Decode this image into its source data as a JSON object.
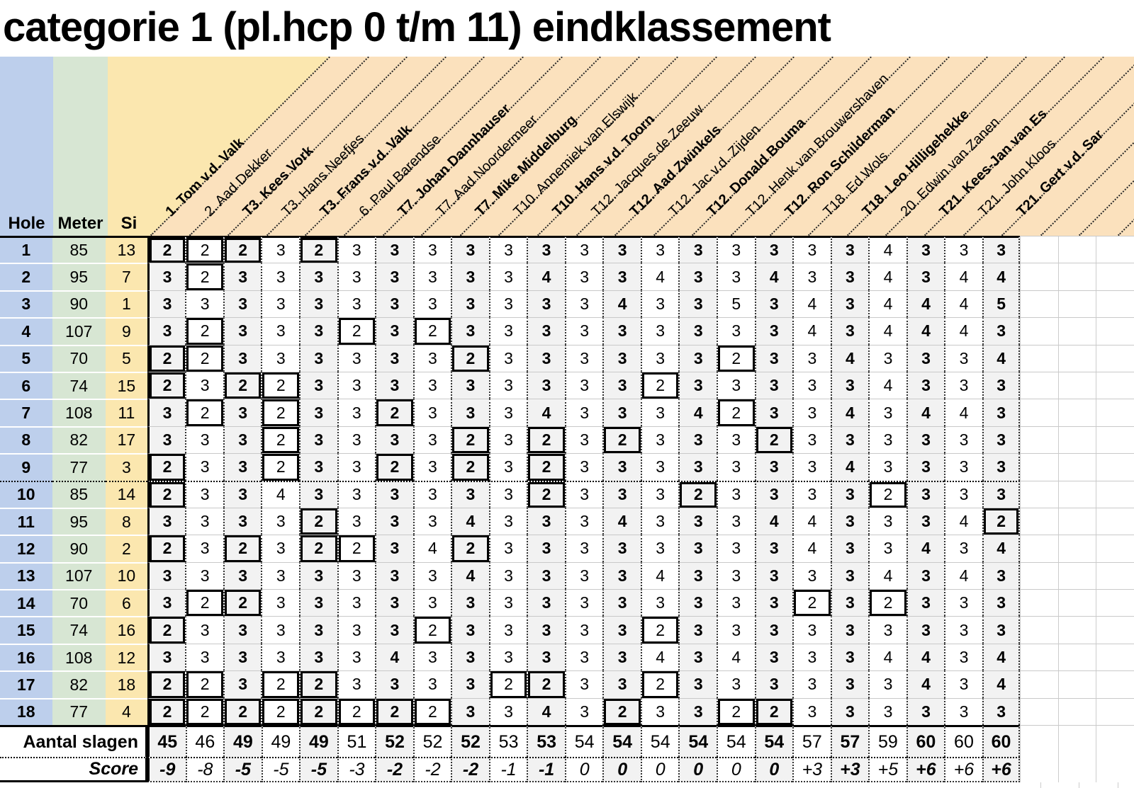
{
  "title": "categorie 1 (pl.hcp 0 t/m 11) eindklassement",
  "columns": {
    "hole": "Hole",
    "meter": "Meter",
    "si": "Si"
  },
  "totals_label": "Aantal slagen",
  "score_label": "Score",
  "colors": {
    "hole_column": "#bdcfec",
    "meter_column": "#d7e6d3",
    "si_column": "#fbe7af",
    "header_peach": "#fbe1bd",
    "alt_column_gray": "#f2f2f2",
    "birdie_box_border": "#000000"
  },
  "players": [
    {
      "name": "1. Tom v.d. Valk",
      "bold": true,
      "total": 45,
      "score": "-9"
    },
    {
      "name": "2. Aad Dekker",
      "bold": false,
      "total": 46,
      "score": "-8"
    },
    {
      "name": "T3. Kees Vork",
      "bold": true,
      "total": 49,
      "score": "-5"
    },
    {
      "name": "T3. Hans Neefjes",
      "bold": false,
      "total": 49,
      "score": "-5"
    },
    {
      "name": "T3. Frans v.d. Valk",
      "bold": true,
      "total": 49,
      "score": "-5"
    },
    {
      "name": "6. Paul Barendse",
      "bold": false,
      "total": 51,
      "score": "-3"
    },
    {
      "name": "T7. Johan Dannhauser",
      "bold": true,
      "total": 52,
      "score": "-2"
    },
    {
      "name": "T7. Aad Noordermeer",
      "bold": false,
      "total": 52,
      "score": "-2"
    },
    {
      "name": "T7. Mike Middelburg",
      "bold": true,
      "total": 52,
      "score": "-2"
    },
    {
      "name": "T10. Annemiek van Elswijk",
      "bold": false,
      "total": 53,
      "score": "-1"
    },
    {
      "name": "T10. Hans v.d. Toorn",
      "bold": true,
      "total": 53,
      "score": "-1"
    },
    {
      "name": "T12. Jacques de Zeeuw",
      "bold": false,
      "total": 54,
      "score": "0"
    },
    {
      "name": "T12. Aad Zwinkels",
      "bold": true,
      "total": 54,
      "score": "0"
    },
    {
      "name": "T12. Jac v.d. Zijden",
      "bold": false,
      "total": 54,
      "score": "0"
    },
    {
      "name": "T12. Donald Bouma",
      "bold": true,
      "total": 54,
      "score": "0"
    },
    {
      "name": "T12. Henk van Brouwershaven",
      "bold": false,
      "total": 54,
      "score": "0"
    },
    {
      "name": "T12. Ron Schilderman",
      "bold": true,
      "total": 54,
      "score": "0"
    },
    {
      "name": "T18. Ed Wols",
      "bold": false,
      "total": 57,
      "score": "+3"
    },
    {
      "name": "T18. Leo Hilligehekke",
      "bold": true,
      "total": 57,
      "score": "+3"
    },
    {
      "name": "20. Edwin van Zanen",
      "bold": false,
      "total": 59,
      "score": "+5"
    },
    {
      "name": "T21. Kees-Jan van Es",
      "bold": true,
      "total": 60,
      "score": "+6"
    },
    {
      "name": "T21. John Kloos",
      "bold": false,
      "total": 60,
      "score": "+6"
    },
    {
      "name": "T21. Gert v.d. Sar",
      "bold": true,
      "total": 60,
      "score": "+6"
    }
  ],
  "holes": [
    {
      "hole": 1,
      "meter": 85,
      "si": 13,
      "scores": [
        2,
        2,
        2,
        3,
        2,
        3,
        3,
        3,
        3,
        3,
        3,
        3,
        3,
        3,
        3,
        3,
        3,
        3,
        3,
        4,
        3,
        3,
        3
      ]
    },
    {
      "hole": 2,
      "meter": 95,
      "si": 7,
      "scores": [
        3,
        2,
        3,
        3,
        3,
        3,
        3,
        3,
        3,
        3,
        4,
        3,
        3,
        4,
        3,
        3,
        4,
        3,
        3,
        4,
        3,
        4,
        4
      ]
    },
    {
      "hole": 3,
      "meter": 90,
      "si": 1,
      "scores": [
        3,
        3,
        3,
        3,
        3,
        3,
        3,
        3,
        3,
        3,
        3,
        3,
        4,
        3,
        3,
        5,
        3,
        4,
        3,
        4,
        4,
        4,
        5
      ]
    },
    {
      "hole": 4,
      "meter": 107,
      "si": 9,
      "scores": [
        3,
        2,
        3,
        3,
        3,
        2,
        3,
        2,
        3,
        3,
        3,
        3,
        3,
        3,
        3,
        3,
        3,
        4,
        3,
        4,
        4,
        4,
        3
      ]
    },
    {
      "hole": 5,
      "meter": 70,
      "si": 5,
      "scores": [
        2,
        2,
        3,
        3,
        3,
        3,
        3,
        3,
        2,
        3,
        3,
        3,
        3,
        3,
        3,
        2,
        3,
        3,
        4,
        3,
        3,
        3,
        4
      ]
    },
    {
      "hole": 6,
      "meter": 74,
      "si": 15,
      "scores": [
        2,
        3,
        2,
        2,
        3,
        3,
        3,
        3,
        3,
        3,
        3,
        3,
        3,
        2,
        3,
        3,
        3,
        3,
        3,
        4,
        3,
        3,
        3
      ]
    },
    {
      "hole": 7,
      "meter": 108,
      "si": 11,
      "scores": [
        3,
        2,
        3,
        2,
        3,
        3,
        2,
        3,
        3,
        3,
        4,
        3,
        3,
        3,
        4,
        2,
        3,
        3,
        4,
        3,
        4,
        4,
        3
      ]
    },
    {
      "hole": 8,
      "meter": 82,
      "si": 17,
      "scores": [
        3,
        3,
        3,
        2,
        3,
        3,
        3,
        3,
        2,
        3,
        2,
        3,
        2,
        3,
        3,
        3,
        2,
        3,
        3,
        3,
        3,
        3,
        3
      ]
    },
    {
      "hole": 9,
      "meter": 77,
      "si": 3,
      "scores": [
        2,
        3,
        3,
        2,
        3,
        3,
        2,
        3,
        2,
        3,
        2,
        3,
        3,
        3,
        3,
        3,
        3,
        3,
        4,
        3,
        3,
        3,
        3
      ]
    },
    {
      "hole": 10,
      "meter": 85,
      "si": 14,
      "scores": [
        2,
        3,
        3,
        4,
        3,
        3,
        3,
        3,
        3,
        3,
        2,
        3,
        3,
        3,
        2,
        3,
        3,
        3,
        3,
        2,
        3,
        3,
        3
      ]
    },
    {
      "hole": 11,
      "meter": 95,
      "si": 8,
      "scores": [
        3,
        3,
        3,
        3,
        2,
        3,
        3,
        3,
        4,
        3,
        3,
        3,
        4,
        3,
        3,
        3,
        4,
        4,
        3,
        3,
        3,
        4,
        2
      ]
    },
    {
      "hole": 12,
      "meter": 90,
      "si": 2,
      "scores": [
        2,
        3,
        2,
        3,
        2,
        2,
        3,
        4,
        2,
        3,
        3,
        3,
        3,
        3,
        3,
        3,
        3,
        4,
        3,
        3,
        4,
        3,
        4
      ]
    },
    {
      "hole": 13,
      "meter": 107,
      "si": 10,
      "scores": [
        3,
        3,
        3,
        3,
        3,
        3,
        3,
        3,
        4,
        3,
        3,
        3,
        3,
        4,
        3,
        3,
        3,
        3,
        3,
        4,
        3,
        4,
        3
      ]
    },
    {
      "hole": 14,
      "meter": 70,
      "si": 6,
      "scores": [
        3,
        2,
        2,
        3,
        3,
        3,
        3,
        3,
        3,
        3,
        3,
        3,
        3,
        3,
        3,
        3,
        3,
        2,
        3,
        2,
        3,
        3,
        3
      ]
    },
    {
      "hole": 15,
      "meter": 74,
      "si": 16,
      "scores": [
        2,
        3,
        3,
        3,
        3,
        3,
        3,
        2,
        3,
        3,
        3,
        3,
        3,
        2,
        3,
        3,
        3,
        3,
        3,
        3,
        3,
        3,
        3
      ]
    },
    {
      "hole": 16,
      "meter": 108,
      "si": 12,
      "scores": [
        3,
        3,
        3,
        3,
        3,
        3,
        4,
        3,
        3,
        3,
        3,
        3,
        3,
        4,
        3,
        4,
        3,
        3,
        3,
        4,
        4,
        3,
        4
      ]
    },
    {
      "hole": 17,
      "meter": 82,
      "si": 18,
      "scores": [
        2,
        2,
        3,
        2,
        2,
        3,
        3,
        3,
        3,
        2,
        2,
        3,
        3,
        2,
        3,
        3,
        3,
        3,
        3,
        3,
        4,
        3,
        4
      ]
    },
    {
      "hole": 18,
      "meter": 77,
      "si": 4,
      "scores": [
        2,
        2,
        2,
        2,
        2,
        2,
        2,
        2,
        3,
        3,
        4,
        3,
        2,
        3,
        3,
        2,
        2,
        3,
        3,
        3,
        3,
        3,
        3
      ]
    }
  ]
}
